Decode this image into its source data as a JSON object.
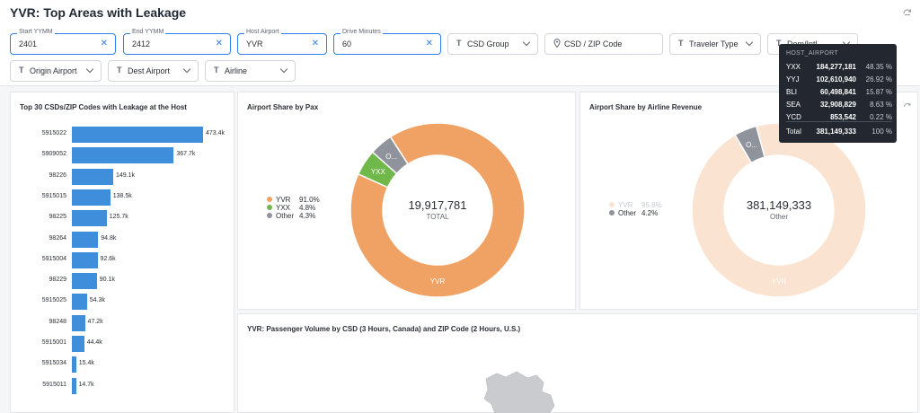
{
  "dashboard": {
    "title": "YVR: Top Areas with Leakage"
  },
  "filters": {
    "start_yymm": {
      "label": "Start YYMM",
      "value": "2401"
    },
    "end_yymm": {
      "label": "End YYMM",
      "value": "2412"
    },
    "host_airport": {
      "label": "Host Airport",
      "value": "YVR"
    },
    "drive_minutes": {
      "label": "Drive Minutes",
      "value": "60"
    },
    "csd_group": {
      "name": "CSD Group"
    },
    "csd_zip": {
      "name": "CSD / ZIP Code"
    },
    "traveler_type": {
      "name": "Traveler Type"
    },
    "dom_intl": {
      "name": "Dom/Intl"
    },
    "origin_airport": {
      "name": "Origin Airport"
    },
    "dest_airport": {
      "name": "Dest Airport"
    },
    "airline": {
      "name": "Airline"
    }
  },
  "bar_panel": {
    "title": "Top 30 CSDs/ZIP Codes with Leakage at the Host",
    "chart_data": {
      "type": "bar",
      "orientation": "horizontal",
      "categories": [
        "5915022",
        "5909052",
        "98226",
        "5915015",
        "98225",
        "98264",
        "5915004",
        "98229",
        "5915025",
        "98248",
        "5915001",
        "5915034",
        "5915011"
      ],
      "values": [
        473.4,
        367.7,
        149.1,
        138.5,
        125.7,
        94.8,
        92.6,
        90.1,
        54.3,
        47.2,
        44.4,
        15.4,
        14.7
      ],
      "labels": [
        "473.4k",
        "367.7k",
        "149.1k",
        "138.5k",
        "125.7k",
        "94.8k",
        "92.6k",
        "90.1k",
        "54.3k",
        "47.2k",
        "44.4k",
        "15.4k",
        "14.7k"
      ],
      "color": "#3e8edc"
    }
  },
  "pax_panel": {
    "title": "Airport Share by Pax",
    "center_value": "19,917,781",
    "center_label": "TOTAL",
    "chart_data": {
      "type": "pie",
      "categories": [
        "YVR",
        "YXX",
        "Other"
      ],
      "values": [
        91.0,
        4.8,
        4.3
      ],
      "labels": [
        "91.0%",
        "4.8%",
        "4.3%"
      ],
      "slice_labels": [
        "YVR",
        "YXX",
        "O..."
      ],
      "colors": [
        "#f0a265",
        "#70b84a",
        "#8f939c"
      ]
    }
  },
  "rev_panel": {
    "title": "Airport Share by Airline Revenue",
    "center_value": "381,149,333",
    "center_label": "Other",
    "chart_data": {
      "type": "pie",
      "categories": [
        "YVR",
        "Other"
      ],
      "values": [
        95.8,
        4.2
      ],
      "labels": [
        "95.8%",
        "4.2%"
      ],
      "slice_labels": [
        "YVR",
        "O..."
      ],
      "colors": [
        "#fbe3d1",
        "#8f939c"
      ]
    }
  },
  "map_panel": {
    "title": "YVR: Passenger Volume by CSD (3 Hours, Canada) and ZIP Code (2 Hours, U.S.)"
  },
  "tooltip": {
    "title": "HOST_AIRPORT",
    "rows": [
      {
        "code": "YXX",
        "value": "184,277,181",
        "pct": "48.35 %"
      },
      {
        "code": "YYJ",
        "value": "102,610,940",
        "pct": "26.92 %"
      },
      {
        "code": "BLI",
        "value": "60,498,841",
        "pct": "15.87 %"
      },
      {
        "code": "SEA",
        "value": "32,908,829",
        "pct": "8.63 %"
      },
      {
        "code": "YCD",
        "value": "853,542",
        "pct": "0.22 %"
      }
    ],
    "total": {
      "code": "Total",
      "value": "381,149,333",
      "pct": "100 %"
    }
  },
  "icons": {
    "refresh": "refresh-icon",
    "text_filter": "text-type-icon",
    "location": "location-pin-icon",
    "clear": "close-icon",
    "chevron": "chevron-down-icon"
  }
}
